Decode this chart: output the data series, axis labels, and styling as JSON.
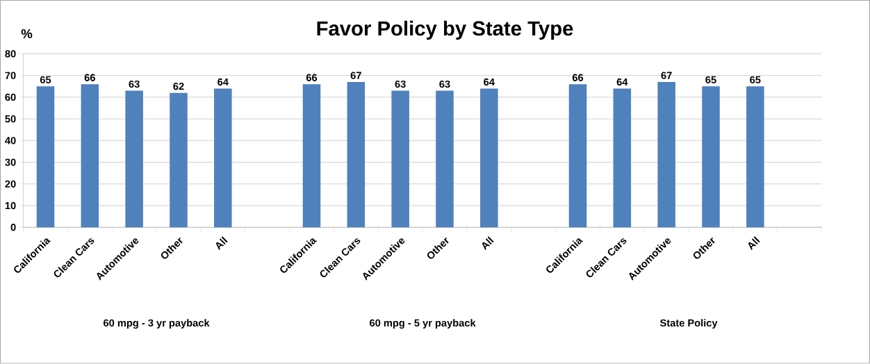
{
  "chart_data": {
    "type": "bar",
    "title": "Favor Policy by State Type",
    "ylabel": "%",
    "categories": [
      "California",
      "Clean Cars",
      "Automotive",
      "Other",
      "All",
      null,
      "California",
      "Clean Cars",
      "Automotive",
      "Other",
      "All",
      null,
      "California",
      "Clean Cars",
      "Automotive",
      "Other",
      "All",
      null
    ],
    "values": [
      65,
      66,
      63,
      62,
      64,
      null,
      66,
      67,
      63,
      63,
      64,
      null,
      66,
      64,
      67,
      65,
      65,
      null
    ],
    "color": "#4f81bd",
    "data_labels": true,
    "ylim": [
      0,
      80
    ],
    "yticks": [
      0,
      10,
      20,
      30,
      40,
      50,
      60,
      70,
      80
    ],
    "grid": "y",
    "annotations": [
      "60 mpg  - 3 yr payback",
      "60 mpg  - 5 yr payback",
      "State Policy"
    ]
  }
}
